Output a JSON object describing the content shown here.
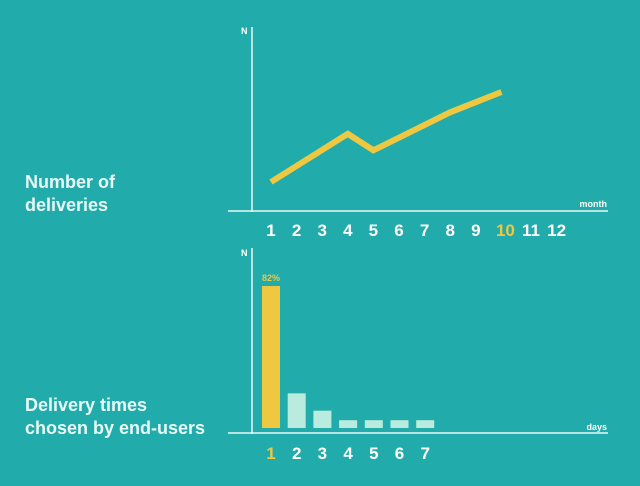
{
  "colors": {
    "background": "#22abab",
    "accent": "#efc842",
    "axis": "#e6f7f5",
    "tick": "#ffffff",
    "bar_muted": "#b9ecdf"
  },
  "chart_data": [
    {
      "type": "line",
      "title": "Number of deliveries",
      "title_lines": [
        "Number of",
        "deliveries"
      ],
      "ylabel": "N",
      "xlabel": "month",
      "categories": [
        "1",
        "2",
        "3",
        "4",
        "5",
        "6",
        "7",
        "8",
        "9",
        "10",
        "11",
        "12"
      ],
      "highlight_category": "10",
      "x": [
        1,
        4,
        5,
        8,
        10
      ],
      "y": [
        1,
        4.8,
        3.5,
        6.5,
        8.1
      ],
      "ylim": [
        0,
        10
      ],
      "grid": false
    },
    {
      "type": "bar",
      "title": "Delivery times chosen by end-users",
      "title_lines": [
        "Delivery times",
        "chosen by end-users"
      ],
      "ylabel": "N",
      "xlabel": "days",
      "categories": [
        "1",
        "2",
        "3",
        "4",
        "5",
        "6",
        "7"
      ],
      "highlight_category": "1",
      "values": [
        82,
        20,
        10,
        4.5,
        4.5,
        4.5,
        4.5
      ],
      "data_labels": [
        "82%",
        "",
        "",
        "",
        "",
        "",
        ""
      ],
      "ylim": [
        0,
        100
      ],
      "grid": false
    }
  ]
}
